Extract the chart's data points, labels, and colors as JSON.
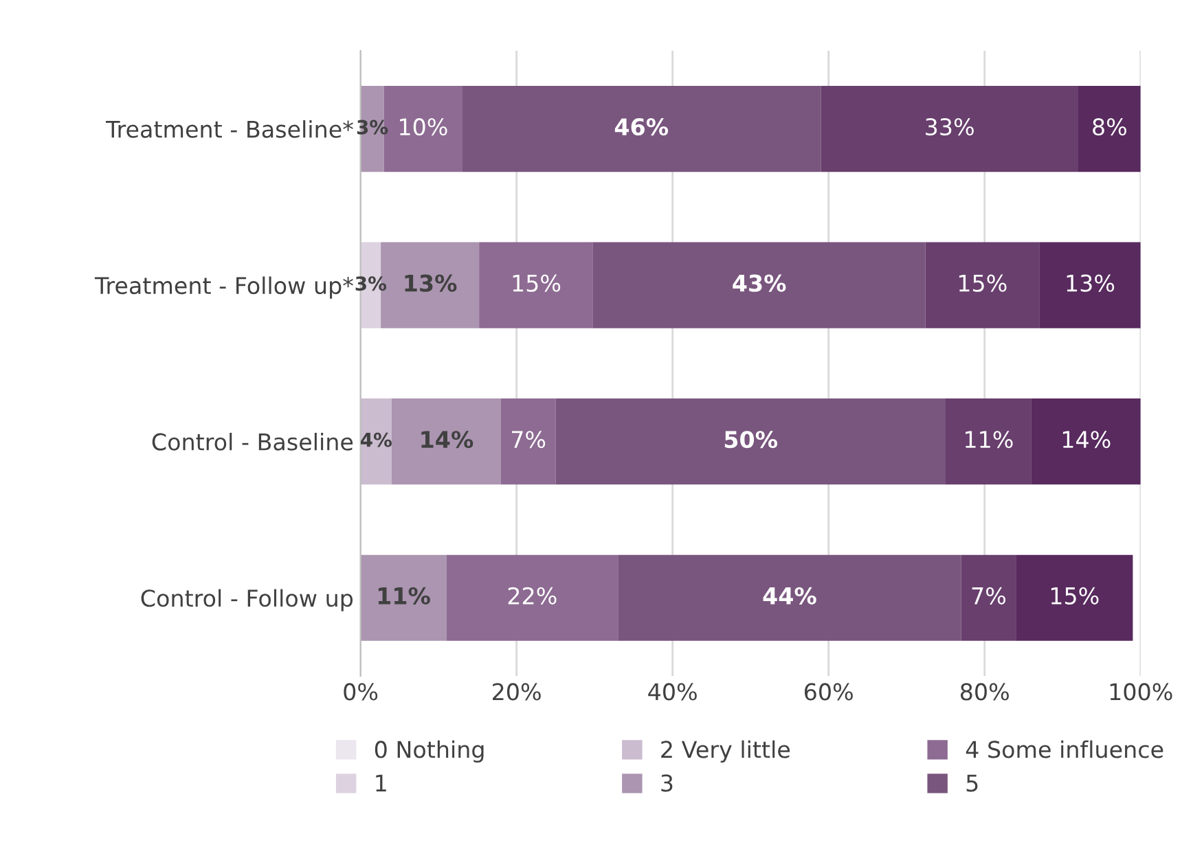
{
  "chart_data": {
    "type": "bar",
    "orientation": "horizontal",
    "stacked": true,
    "categories": [
      "Treatment - Baseline*",
      "Treatment - Follow up*",
      "Control - Baseline",
      "Control - Follow up"
    ],
    "series": [
      {
        "name": "0 Nothing",
        "color": "#ece6ee",
        "values": [
          null,
          null,
          null,
          null
        ],
        "value_labels": [
          null,
          null,
          null,
          null
        ]
      },
      {
        "name": "1",
        "color": "#ddd2e0",
        "values": [
          null,
          2.6,
          null,
          null
        ],
        "value_labels": [
          null,
          "3%",
          null,
          null
        ]
      },
      {
        "name": "2 Very little",
        "color": "#cbbcd0",
        "values": [
          null,
          null,
          4,
          null
        ],
        "value_labels": [
          null,
          null,
          "4%",
          null
        ]
      },
      {
        "name": "3",
        "color": "#ab95b0",
        "values": [
          3,
          12.6,
          14,
          11
        ],
        "value_labels": [
          "3%",
          "13%",
          "14%",
          "11%"
        ]
      },
      {
        "name": "4 Some influence",
        "color": "#8d6b92",
        "values": [
          10,
          14.6,
          7,
          22
        ],
        "value_labels": [
          "10%",
          "15%",
          "7%",
          "22%"
        ]
      },
      {
        "name": "5",
        "color": "#79567e",
        "values": [
          46,
          42.6,
          50,
          44
        ],
        "value_labels": [
          "46%",
          "43%",
          "50%",
          "44%"
        ]
      },
      {
        "color": "#683f6d",
        "values": [
          33,
          14.6,
          11,
          7
        ],
        "value_labels": [
          "33%",
          "15%",
          "11%",
          "7%"
        ]
      },
      {
        "color": "#582a5e",
        "values": [
          8,
          13,
          14,
          15
        ],
        "value_labels": [
          "8%",
          "13%",
          "14%",
          "15%"
        ]
      }
    ],
    "xlim": [
      0,
      100
    ],
    "xticks": [
      {
        "value": 0,
        "label": "0%"
      },
      {
        "value": 20,
        "label": "20%"
      },
      {
        "value": 40,
        "label": "40%"
      },
      {
        "value": 60,
        "label": "60%"
      },
      {
        "value": 80,
        "label": "80%"
      },
      {
        "value": 100,
        "label": "100%"
      }
    ],
    "grid": "x",
    "legend": "bottom"
  }
}
